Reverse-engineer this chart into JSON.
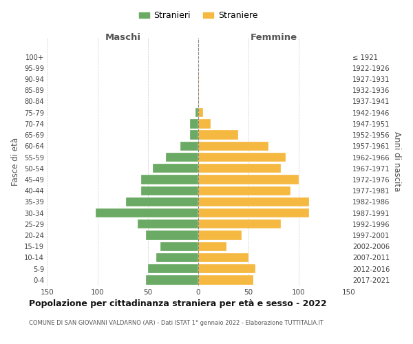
{
  "age_groups": [
    "0-4",
    "5-9",
    "10-14",
    "15-19",
    "20-24",
    "25-29",
    "30-34",
    "35-39",
    "40-44",
    "45-49",
    "50-54",
    "55-59",
    "60-64",
    "65-69",
    "70-74",
    "75-79",
    "80-84",
    "85-89",
    "90-94",
    "95-99",
    "100+"
  ],
  "birth_years": [
    "2017-2021",
    "2012-2016",
    "2007-2011",
    "2002-2006",
    "1997-2001",
    "1992-1996",
    "1987-1991",
    "1982-1986",
    "1977-1981",
    "1972-1976",
    "1967-1971",
    "1962-1966",
    "1957-1961",
    "1952-1956",
    "1947-1951",
    "1942-1946",
    "1937-1941",
    "1932-1936",
    "1927-1931",
    "1922-1926",
    "≤ 1921"
  ],
  "males": [
    52,
    50,
    42,
    38,
    52,
    60,
    102,
    72,
    57,
    57,
    45,
    32,
    18,
    8,
    8,
    3,
    0,
    0,
    0,
    0,
    0
  ],
  "females": [
    55,
    57,
    50,
    28,
    43,
    82,
    110,
    110,
    92,
    100,
    82,
    87,
    70,
    40,
    12,
    5,
    1,
    1,
    1,
    0,
    0
  ],
  "male_color": "#6aaa64",
  "female_color": "#f5b942",
  "title": "Popolazione per cittadinanza straniera per età e sesso - 2022",
  "subtitle": "COMUNE DI SAN GIOVANNI VALDARNO (AR) - Dati ISTAT 1° gennaio 2022 - Elaborazione TUTTITALIA.IT",
  "ylabel_left": "Fasce di età",
  "ylabel_right": "Anni di nascita",
  "xlabel_left": "Maschi",
  "xlabel_right": "Femmine",
  "legend_male": "Stranieri",
  "legend_female": "Straniere",
  "xlim": 150,
  "background_color": "#ffffff",
  "grid_color": "#cccccc",
  "center_line_color": "#888888"
}
